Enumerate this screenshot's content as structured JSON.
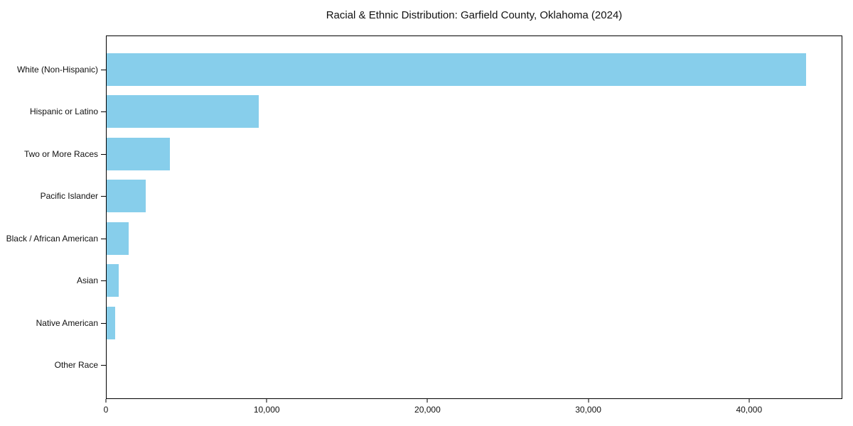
{
  "chart_data": {
    "type": "bar",
    "orientation": "horizontal",
    "title": "Racial & Ethnic Distribution: Garfield County, Oklahoma (2024)",
    "categories": [
      "White (Non-Hispanic)",
      "Hispanic or Latino",
      "Two or More Races",
      "Pacific Islander",
      "Black / African American",
      "Asian",
      "Native American",
      "Other Race"
    ],
    "values": [
      43600,
      9460,
      3930,
      2430,
      1370,
      750,
      530,
      0
    ],
    "xlabel": "",
    "ylabel": "",
    "xlim": [
      0,
      45800
    ],
    "xticks": [
      0,
      10000,
      20000,
      30000,
      40000
    ],
    "xtick_labels": [
      "0",
      "10,000",
      "20,000",
      "30,000",
      "40,000"
    ],
    "bar_color": "#87CEEB",
    "grid": false,
    "legend": "none"
  }
}
